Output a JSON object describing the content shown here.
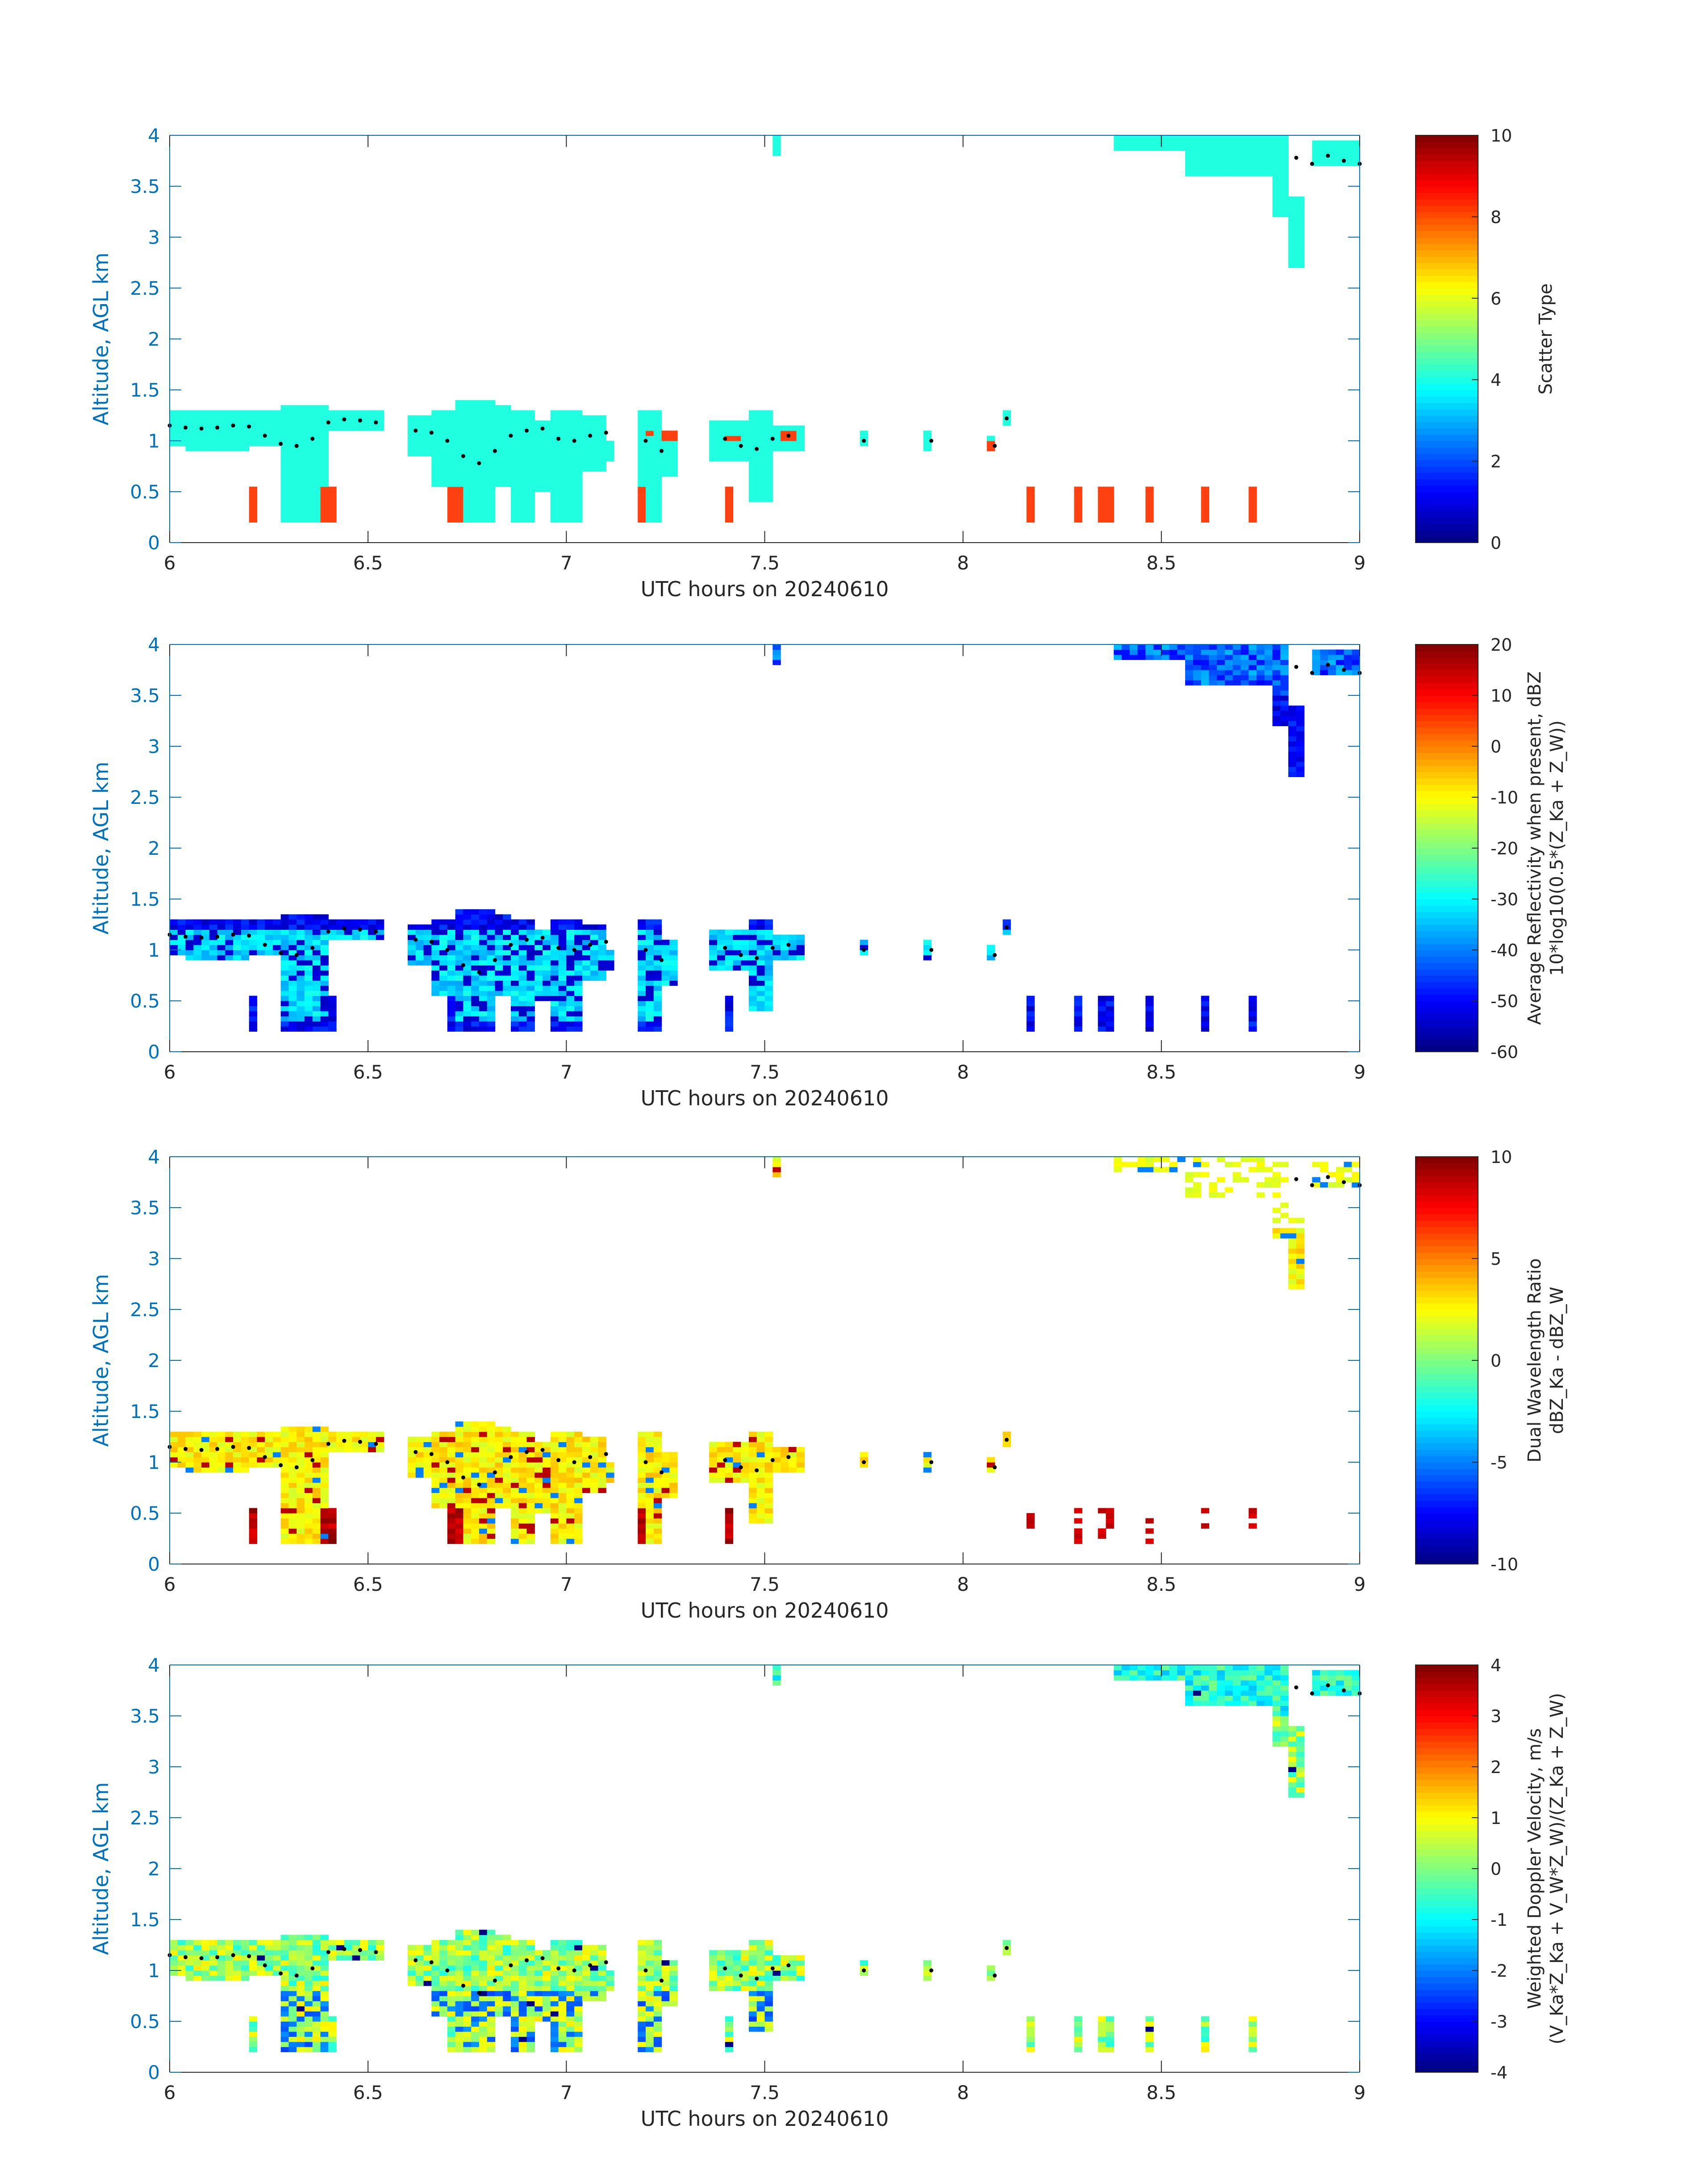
{
  "chart_data": [
    {
      "type": "heatmap",
      "xlabel": "UTC hours on 20240610",
      "ylabel": "Altitude, AGL km",
      "xlim": [
        6,
        9
      ],
      "ylim": [
        0,
        4
      ],
      "xticks": [
        6,
        6.5,
        7,
        7.5,
        8,
        8.5,
        9
      ],
      "xtick_labels": [
        "6",
        "6.5",
        "7",
        "7.5",
        "8",
        "8.5",
        "9"
      ],
      "yticks": [
        0,
        0.5,
        1,
        1.5,
        2,
        2.5,
        3,
        3.5,
        4
      ],
      "ytick_labels": [
        "0",
        "0.5",
        "1",
        "1.5",
        "2",
        "2.5",
        "3",
        "3.5",
        "4"
      ],
      "colorbar": {
        "label_lines": [
          "Scatter Type"
        ],
        "range": [
          0,
          10
        ],
        "ticks": [
          0,
          2,
          4,
          6,
          8,
          10
        ],
        "tick_labels": [
          "0",
          "2",
          "4",
          "6",
          "8",
          "10"
        ],
        "colormap": "jet"
      }
    },
    {
      "type": "heatmap",
      "xlabel": "UTC hours on 20240610",
      "ylabel": "Altitude, AGL km",
      "xlim": [
        6,
        9
      ],
      "ylim": [
        0,
        4
      ],
      "xticks": [
        6,
        6.5,
        7,
        7.5,
        8,
        8.5,
        9
      ],
      "xtick_labels": [
        "6",
        "6.5",
        "7",
        "7.5",
        "8",
        "8.5",
        "9"
      ],
      "yticks": [
        0,
        0.5,
        1,
        1.5,
        2,
        2.5,
        3,
        3.5,
        4
      ],
      "ytick_labels": [
        "0",
        "0.5",
        "1",
        "1.5",
        "2",
        "2.5",
        "3",
        "3.5",
        "4"
      ],
      "colorbar": {
        "label_lines": [
          "Average Reflectivity when present, dBZ",
          "10*log10(0.5*(Z_Ka + Z_W))"
        ],
        "range": [
          -60,
          20
        ],
        "ticks": [
          -60,
          -50,
          -40,
          -30,
          -20,
          -10,
          0,
          10,
          20
        ],
        "tick_labels": [
          "-60",
          "-50",
          "-40",
          "-30",
          "-20",
          "-10",
          "0",
          "10",
          "20"
        ],
        "colormap": "jet"
      }
    },
    {
      "type": "heatmap",
      "xlabel": "UTC hours on 20240610",
      "ylabel": "Altitude, AGL km",
      "xlim": [
        6,
        9
      ],
      "ylim": [
        0,
        4
      ],
      "xticks": [
        6,
        6.5,
        7,
        7.5,
        8,
        8.5,
        9
      ],
      "xtick_labels": [
        "6",
        "6.5",
        "7",
        "7.5",
        "8",
        "8.5",
        "9"
      ],
      "yticks": [
        0,
        0.5,
        1,
        1.5,
        2,
        2.5,
        3,
        3.5,
        4
      ],
      "ytick_labels": [
        "0",
        "0.5",
        "1",
        "1.5",
        "2",
        "2.5",
        "3",
        "3.5",
        "4"
      ],
      "colorbar": {
        "label_lines": [
          "Dual Wavelength Ratio",
          "dBZ_Ka - dBZ_W"
        ],
        "range": [
          -10,
          10
        ],
        "ticks": [
          -10,
          -5,
          0,
          5,
          10
        ],
        "tick_labels": [
          "-10",
          "-5",
          "0",
          "5",
          "10"
        ],
        "colormap": "jet"
      }
    },
    {
      "type": "heatmap",
      "xlabel": "UTC hours on 20240610",
      "ylabel": "Altitude, AGL km",
      "xlim": [
        6,
        9
      ],
      "ylim": [
        0,
        4
      ],
      "xticks": [
        6,
        6.5,
        7,
        7.5,
        8,
        8.5,
        9
      ],
      "xtick_labels": [
        "6",
        "6.5",
        "7",
        "7.5",
        "8",
        "8.5",
        "9"
      ],
      "yticks": [
        0,
        0.5,
        1,
        1.5,
        2,
        2.5,
        3,
        3.5,
        4
      ],
      "ytick_labels": [
        "0",
        "0.5",
        "1",
        "1.5",
        "2",
        "2.5",
        "3",
        "3.5",
        "4"
      ],
      "colorbar": {
        "label_lines": [
          "Weighted Doppler Velocity, m/s",
          "(V_Ka*Z_Ka + V_W*Z_W)/(Z_Ka + Z_W)"
        ],
        "range": [
          -4,
          4
        ],
        "ticks": [
          -4,
          -3,
          -2,
          -1,
          0,
          1,
          2,
          3,
          4
        ],
        "tick_labels": [
          "-4",
          "-3",
          "-2",
          "-1",
          "0",
          "1",
          "2",
          "3",
          "4"
        ],
        "colormap": "jet"
      }
    }
  ],
  "cloud_boundary_dots": {
    "x": [
      6.0,
      6.04,
      6.08,
      6.12,
      6.16,
      6.2,
      6.24,
      6.28,
      6.32,
      6.36,
      6.4,
      6.44,
      6.48,
      6.52,
      6.62,
      6.66,
      6.7,
      6.74,
      6.78,
      6.82,
      6.86,
      6.9,
      6.94,
      6.98,
      7.02,
      7.06,
      7.1,
      7.2,
      7.24,
      7.4,
      7.44,
      7.48,
      7.52,
      7.56,
      7.75,
      7.92,
      8.08,
      8.11,
      8.84,
      8.88,
      8.92,
      8.96,
      9.0
    ],
    "y": [
      1.15,
      1.13,
      1.12,
      1.13,
      1.15,
      1.14,
      1.05,
      0.97,
      0.95,
      1.02,
      1.18,
      1.21,
      1.2,
      1.18,
      1.1,
      1.08,
      1.0,
      0.85,
      0.78,
      0.9,
      1.05,
      1.1,
      1.12,
      1.02,
      1.0,
      1.05,
      1.08,
      1.0,
      0.9,
      1.02,
      0.95,
      0.92,
      1.02,
      1.05,
      1.0,
      1.0,
      0.95,
      1.22,
      3.78,
      3.72,
      3.8,
      3.75,
      3.72
    ]
  }
}
